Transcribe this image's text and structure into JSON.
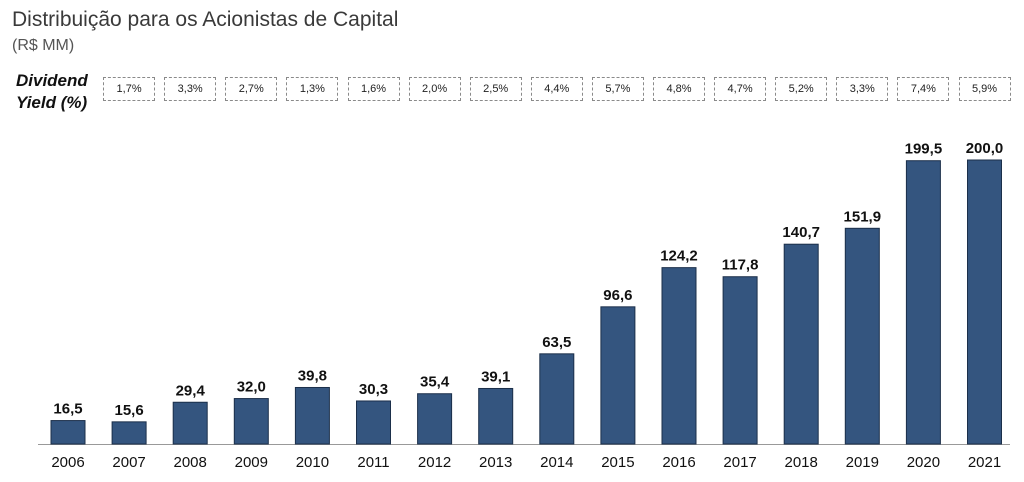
{
  "title": "Distribuição para os Acionistas de Capital",
  "subtitle": "(R$ MM)",
  "dividend_yield_label_line1": "Dividend",
  "dividend_yield_label_line2": "Yield (%)",
  "dividend_yields": [
    "1,7%",
    "3,3%",
    "2,7%",
    "1,3%",
    "1,6%",
    "2,0%",
    "2,5%",
    "4,4%",
    "5,7%",
    "4,8%",
    "4,7%",
    "5,2%",
    "3,3%",
    "7,4%",
    "5,9%"
  ],
  "colors": {
    "bar": "#34557f",
    "bar_outline": "#1b2f4a",
    "axis": "#999999"
  },
  "chart_data": {
    "type": "bar",
    "title": "Distribuição para os Acionistas de Capital",
    "subtitle": "(R$ MM)",
    "categories": [
      "2006",
      "2007",
      "2008",
      "2009",
      "2010",
      "2011",
      "2012",
      "2013",
      "2014",
      "2015",
      "2016",
      "2017",
      "2018",
      "2019",
      "2020",
      "2021"
    ],
    "values": [
      16.5,
      15.6,
      29.4,
      32.0,
      39.8,
      30.3,
      35.4,
      39.1,
      63.5,
      96.6,
      124.2,
      117.8,
      140.7,
      151.9,
      199.5,
      200.0
    ],
    "value_labels": [
      "16,5",
      "15,6",
      "29,4",
      "32,0",
      "39,8",
      "30,3",
      "35,4",
      "39,1",
      "63,5",
      "96,6",
      "124,2",
      "117,8",
      "140,7",
      "151,9",
      "199,5",
      "200,0"
    ],
    "xlabel": "",
    "ylabel": "",
    "ylim": [
      0,
      200
    ],
    "grid": false,
    "legend": "none"
  }
}
